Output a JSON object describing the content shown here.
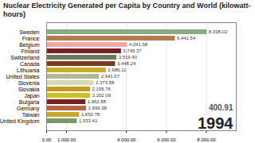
{
  "chart_data": {
    "type": "bar",
    "orientation": "horizontal",
    "title": "Nuclear Electricity Generated per Capita by Country and World (kilowatt-hours)",
    "categories": [
      "Sweden",
      "France",
      "Belgium",
      "Finland",
      "Switzerland",
      "Canada",
      "Lithuania",
      "United States",
      "Slovenia",
      "Slovakia",
      "Japan",
      "Bulgaria",
      "Germany",
      "Taiwan",
      "United Kingdom"
    ],
    "values": [
      8038.02,
      6441.54,
      4041.58,
      3745.37,
      3519.4,
      3448.24,
      2986.11,
      2641.67,
      2373.58,
      2195.76,
      2202.09,
      1962.88,
      1999.38,
      1650.78,
      1533.41
    ],
    "value_labels": [
      "8,038.02",
      "6,441.54",
      "4,041.58",
      "3,745.37",
      "3,519.40",
      "3,448.24",
      "2,986.11",
      "2,641.67",
      "2,373.58",
      "2,195.76",
      "2,202.09",
      "1,962.88",
      "1,999.38",
      "1,650.78",
      "1,533.41"
    ],
    "data_labels": true,
    "colors": [
      "#8aaa80",
      "#b87850",
      "#f0a8a8",
      "#7a2020",
      "#6a7a5a",
      "#7a3a20",
      "#ccaa28",
      "#b0b898",
      "#d8d8b0",
      "#c89828",
      "#ccc028",
      "#7a2020",
      "#b06848",
      "#c8a828",
      "#7a9870"
    ],
    "xlim": [
      0,
      9500
    ],
    "xticks": [
      {
        "value": 0,
        "label": "0.00"
      },
      {
        "value": 1000,
        "label": "1,000.00"
      },
      {
        "value": 4000,
        "label": "4,000.00"
      },
      {
        "value": 6000,
        "label": "6,000.00"
      },
      {
        "value": 8000,
        "label": "8,000.00"
      }
    ],
    "grid": true,
    "annotations": [
      "400.91",
      "1994"
    ]
  }
}
